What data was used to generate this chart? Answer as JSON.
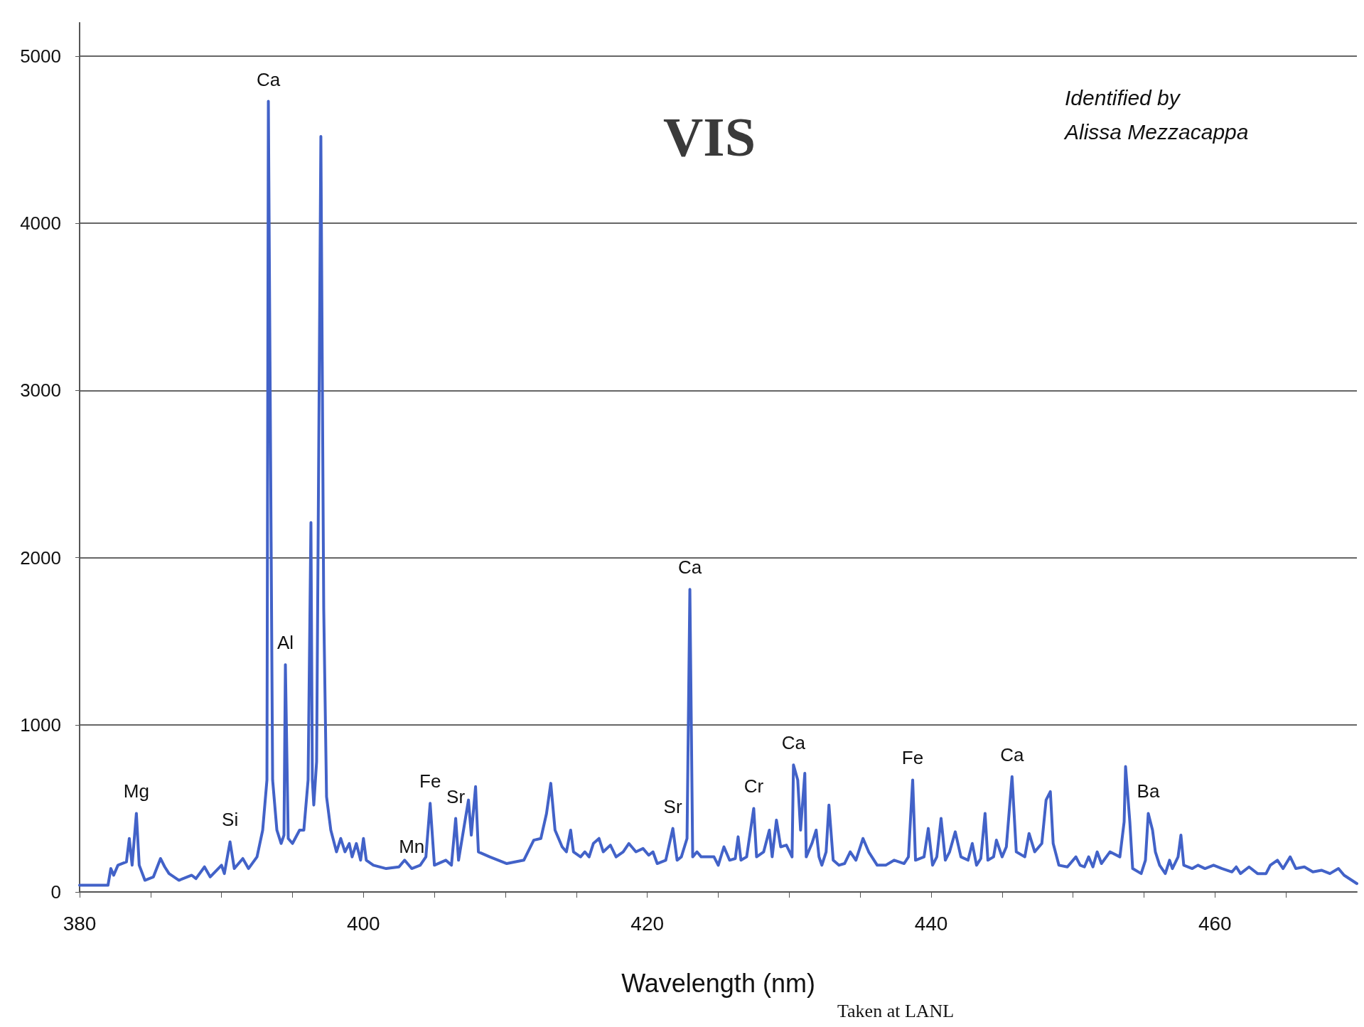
{
  "chart_data": {
    "type": "line",
    "title": "VIS",
    "xlabel": "Wavelength (nm)",
    "x": [
      380.0,
      382.0,
      382.2,
      382.4,
      382.7,
      383.3,
      383.5,
      383.7,
      384.0,
      384.2,
      384.6,
      385.2,
      385.7,
      386.0,
      386.3,
      387.0,
      387.9,
      388.2,
      388.8,
      389.2,
      390.0,
      390.2,
      390.6,
      390.9,
      391.5,
      391.9,
      392.5,
      392.9,
      393.2,
      393.3,
      393.6,
      393.9,
      394.2,
      394.4,
      394.5,
      394.7,
      395.0,
      395.5,
      395.8,
      396.1,
      396.3,
      396.4,
      396.5,
      396.7,
      397.0,
      397.2,
      397.4,
      397.7,
      398.1,
      398.4,
      398.7,
      399.0,
      399.2,
      399.5,
      399.8,
      400.0,
      400.2,
      400.7,
      401.6,
      402.5,
      402.9,
      403.4,
      404.0,
      404.4,
      404.7,
      405.0,
      405.8,
      406.2,
      406.5,
      406.7,
      407.4,
      407.6,
      407.9,
      408.1,
      408.9,
      410.1,
      411.3,
      412.0,
      412.5,
      412.9,
      413.2,
      413.5,
      414.0,
      414.3,
      414.6,
      414.8,
      415.3,
      415.6,
      415.9,
      416.2,
      416.6,
      416.9,
      417.4,
      417.8,
      418.3,
      418.7,
      419.2,
      419.7,
      420.1,
      420.4,
      420.7,
      421.3,
      421.8,
      422.1,
      422.4,
      422.8,
      423.0,
      423.2,
      423.5,
      423.8,
      424.7,
      425.0,
      425.4,
      425.8,
      426.2,
      426.4,
      426.6,
      427.0,
      427.5,
      427.7,
      428.2,
      428.6,
      428.8,
      429.1,
      429.4,
      429.8,
      430.2,
      430.3,
      430.6,
      430.8,
      431.1,
      431.2,
      431.6,
      431.9,
      432.1,
      432.3,
      432.6,
      432.8,
      433.1,
      433.5,
      433.9,
      434.3,
      434.7,
      435.2,
      435.6,
      436.2,
      436.8,
      437.4,
      438.1,
      438.4,
      438.7,
      438.9,
      439.5,
      439.8,
      440.1,
      440.4,
      440.7,
      441.0,
      441.3,
      441.7,
      442.1,
      442.6,
      442.9,
      443.2,
      443.5,
      443.8,
      444.0,
      444.4,
      444.6,
      445.0,
      445.3,
      445.7,
      446.0,
      446.6,
      446.9,
      447.3,
      447.8,
      448.1,
      448.4,
      448.6,
      449.0,
      449.6,
      450.2,
      450.5,
      450.8,
      451.1,
      451.4,
      451.7,
      452.0,
      452.6,
      453.3,
      453.6,
      453.7,
      454.0,
      454.2,
      454.8,
      455.1,
      455.3,
      455.6,
      455.8,
      456.1,
      456.5,
      456.8,
      457.0,
      457.4,
      457.6,
      457.8,
      458.4,
      458.8,
      459.3,
      459.9,
      460.5,
      461.2,
      461.5,
      461.8,
      462.4,
      463.0,
      463.6,
      463.9,
      464.4,
      464.8,
      465.3,
      465.7,
      466.3,
      466.9,
      467.5,
      468.1,
      468.7,
      469.1,
      470.0
    ],
    "series": [
      {
        "color": "#4262c8",
        "values": [
          40,
          40,
          140,
          100,
          160,
          180,
          320,
          160,
          470,
          160,
          70,
          90,
          200,
          150,
          110,
          70,
          100,
          80,
          150,
          90,
          160,
          110,
          300,
          140,
          200,
          140,
          210,
          370,
          670,
          4730,
          670,
          370,
          290,
          340,
          1360,
          320,
          290,
          370,
          370,
          670,
          2210,
          670,
          520,
          780,
          4520,
          1700,
          570,
          370,
          240,
          320,
          240,
          290,
          210,
          290,
          190,
          320,
          190,
          160,
          140,
          150,
          190,
          140,
          160,
          210,
          530,
          160,
          190,
          160,
          440,
          190,
          550,
          340,
          630,
          240,
          210,
          170,
          190,
          310,
          320,
          470,
          650,
          370,
          270,
          240,
          370,
          240,
          210,
          240,
          210,
          290,
          320,
          240,
          280,
          210,
          240,
          290,
          240,
          260,
          220,
          240,
          170,
          190,
          380,
          190,
          210,
          320,
          1810,
          210,
          240,
          210,
          210,
          160,
          270,
          190,
          200,
          330,
          190,
          210,
          500,
          210,
          240,
          370,
          210,
          430,
          270,
          280,
          210,
          760,
          670,
          370,
          710,
          210,
          290,
          370,
          210,
          160,
          240,
          520,
          190,
          160,
          170,
          240,
          190,
          320,
          240,
          160,
          160,
          190,
          170,
          210,
          670,
          190,
          210,
          380,
          160,
          210,
          440,
          190,
          240,
          360,
          210,
          190,
          290,
          160,
          200,
          470,
          190,
          210,
          310,
          210,
          270,
          690,
          240,
          210,
          350,
          240,
          290,
          550,
          600,
          290,
          160,
          150,
          210,
          160,
          150,
          210,
          150,
          240,
          170,
          240,
          210,
          420,
          750,
          420,
          140,
          110,
          190,
          470,
          370,
          240,
          160,
          110,
          190,
          140,
          210,
          340,
          160,
          140,
          160,
          140,
          160,
          140,
          120,
          150,
          110,
          150,
          110,
          110,
          160,
          190,
          140,
          210,
          140,
          150,
          120,
          130,
          110,
          140,
          100,
          50
        ]
      }
    ],
    "xlim": [
      380,
      470
    ],
    "xticks": [
      380,
      {
        "value": 385,
        "label": null
      },
      {
        "value": 390,
        "label": null
      },
      {
        "value": 395,
        "label": null
      },
      400,
      {
        "value": 405,
        "label": null
      },
      {
        "value": 410,
        "label": null
      },
      {
        "value": 415,
        "label": null
      },
      420,
      {
        "value": 425,
        "label": null
      },
      {
        "value": 430,
        "label": null
      },
      {
        "value": 435,
        "label": null
      },
      440,
      {
        "value": 445,
        "label": null
      },
      {
        "value": 450,
        "label": null
      },
      {
        "value": 455,
        "label": null
      },
      460,
      {
        "value": 465,
        "label": null
      }
    ],
    "ylim": [
      0,
      5200
    ],
    "yticks": [
      0,
      1000,
      2000,
      3000,
      4000,
      5000
    ],
    "grid": "y",
    "marker": "none",
    "line_style": "solid",
    "annotations": [
      "Identified by\nAlissa Mezzacappa",
      "Taken at LANL",
      {
        "text": "Mg",
        "x": 384.0,
        "y": 470
      },
      {
        "text": "Si",
        "x": 390.6,
        "y": 300
      },
      {
        "text": "Ca",
        "x": 393.3,
        "y": 4730
      },
      {
        "text": "Al",
        "x": 394.5,
        "y": 1360
      },
      {
        "text": "Mn",
        "x": 403.4,
        "y": 140
      },
      {
        "text": "Fe",
        "x": 404.7,
        "y": 530
      },
      {
        "text": "Sr",
        "x": 406.5,
        "y": 440
      },
      {
        "text": "Sr",
        "x": 421.8,
        "y": 380
      },
      {
        "text": "Ca",
        "x": 423.0,
        "y": 1810
      },
      {
        "text": "Cr",
        "x": 427.5,
        "y": 500
      },
      {
        "text": "Ca",
        "x": 430.3,
        "y": 760
      },
      {
        "text": "Fe",
        "x": 438.7,
        "y": 670
      },
      {
        "text": "Ca",
        "x": 445.7,
        "y": 690
      },
      {
        "text": "Ba",
        "x": 455.3,
        "y": 470
      }
    ]
  }
}
